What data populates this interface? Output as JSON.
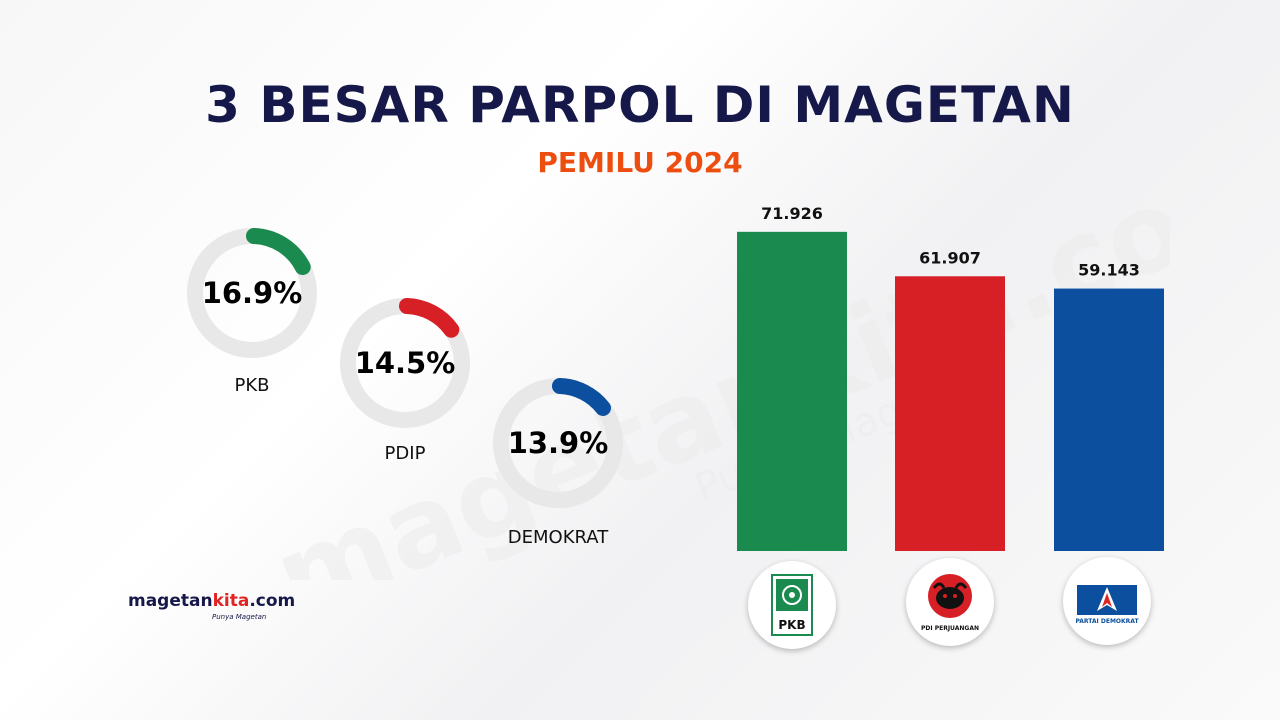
{
  "watermark": {
    "text": "magetankita.com",
    "tagline": "Punya Magetan"
  },
  "header": {
    "title": "3 BESAR PARPOL DI MAGETAN",
    "subtitle": "PEMILU 2024"
  },
  "logo": {
    "brand_main": "magetan",
    "brand_accent": "kita",
    "brand_suffix": ".com",
    "tagline": "Punya Magetan"
  },
  "colors": {
    "title": "#17184a",
    "subtitle": "#ee4d10",
    "ring": "#e8e8e8",
    "pkb": "#1b8a4f",
    "pdip": "#d71f26",
    "demokrat": "#0b4f9e"
  },
  "chart_data": [
    {
      "type": "pie",
      "series": [
        {
          "name": "PKB",
          "value": 16.9,
          "value_label": "16.9%",
          "color": "#1b8a4f"
        },
        {
          "name": "PDIP",
          "value": 14.5,
          "value_label": "14.5%",
          "color": "#d71f26"
        },
        {
          "name": "DEMOKRAT",
          "value": 13.9,
          "value_label": "13.9%",
          "color": "#0b4f9e"
        }
      ]
    },
    {
      "type": "bar",
      "categories": [
        "PKB",
        "PDIP",
        "DEMOKRAT"
      ],
      "values": [
        71926,
        61907,
        59143
      ],
      "value_labels": [
        "71.926",
        "61.907",
        "59.143"
      ],
      "colors": [
        "#1b8a4f",
        "#d71f26",
        "#0b4f9e"
      ],
      "category_logos": [
        {
          "icon": "pkb-logo-icon",
          "text": "PKB"
        },
        {
          "icon": "pdi-perjuangan-logo-icon",
          "text": "PDI PERJUANGAN"
        },
        {
          "icon": "partai-demokrat-logo-icon",
          "text": "PARTAI DEMOKRAT"
        }
      ],
      "ylim": [
        0,
        80000
      ]
    }
  ]
}
